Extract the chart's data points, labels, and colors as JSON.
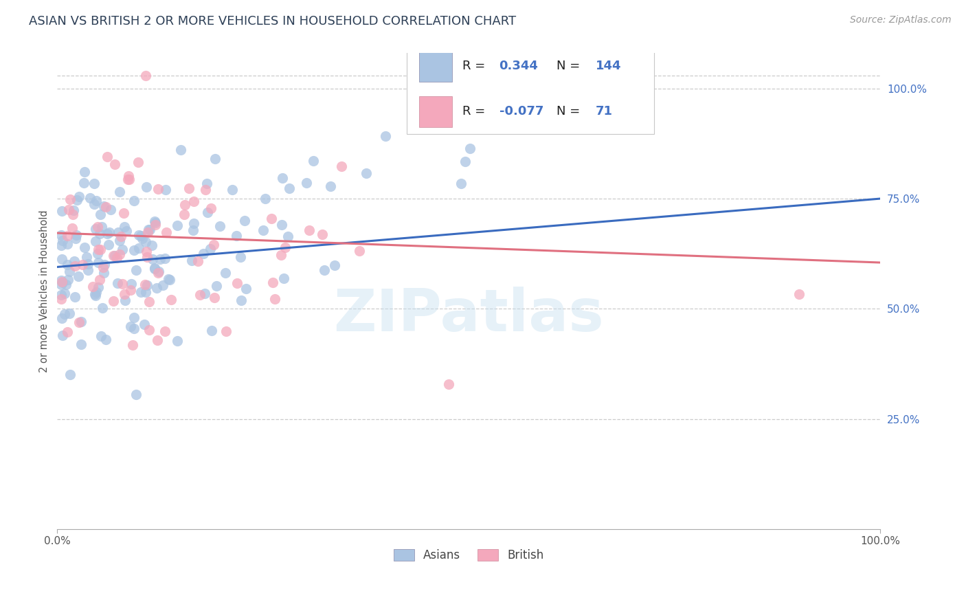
{
  "title": "ASIAN VS BRITISH 2 OR MORE VEHICLES IN HOUSEHOLD CORRELATION CHART",
  "source_text": "Source: ZipAtlas.com",
  "ylabel": "2 or more Vehicles in Household",
  "ytick_labels": [
    "25.0%",
    "50.0%",
    "75.0%",
    "100.0%"
  ],
  "ytick_values": [
    0.25,
    0.5,
    0.75,
    1.0
  ],
  "xmin": 0.0,
  "xmax": 1.0,
  "ymin": 0.0,
  "ymax": 1.08,
  "asian_color": "#aac4e2",
  "british_color": "#f4a8bc",
  "asian_line_color": "#3a6bbf",
  "british_line_color": "#e07080",
  "asian_R": 0.344,
  "asian_N": 144,
  "british_R": -0.077,
  "british_N": 71,
  "legend_label_asian": "Asians",
  "legend_label_british": "British",
  "watermark_text": "ZIPatlas",
  "background_color": "#ffffff",
  "grid_color": "#cccccc",
  "title_color": "#2e4057",
  "legend_R_color": "#4472c4",
  "axis_label_color": "#4472c4",
  "xtick_color": "#555555",
  "ylabel_color": "#555555"
}
